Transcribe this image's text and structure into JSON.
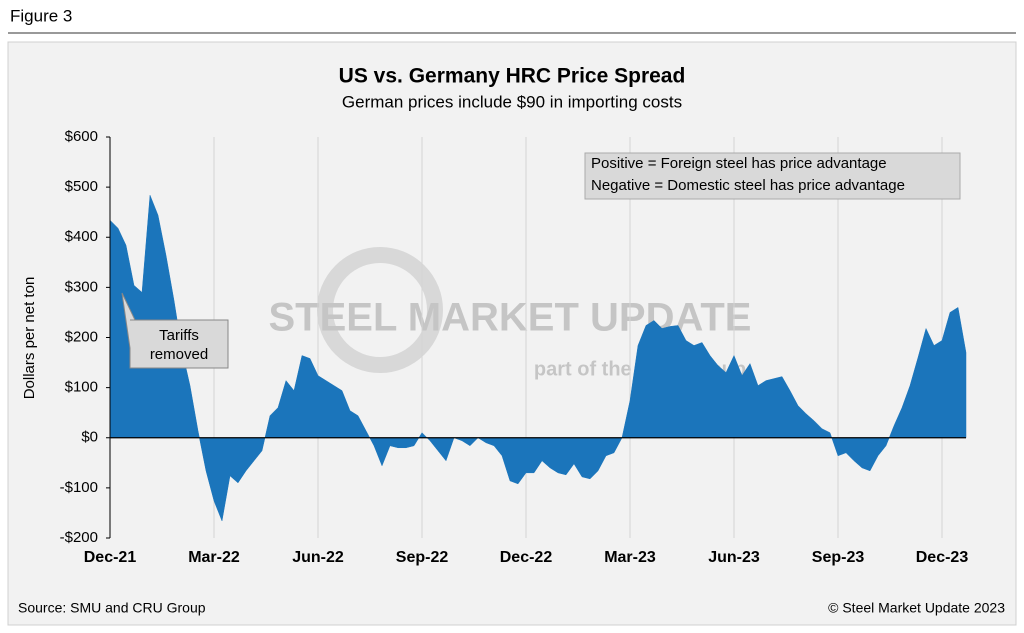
{
  "header": "Figure 3",
  "chart_data": {
    "type": "area",
    "title": "US vs. Germany HRC Price Spread",
    "subtitle": "German prices include $90 in importing costs",
    "y_label": "Dollars per net ton",
    "x": [
      0,
      1,
      2,
      3,
      4,
      5,
      6,
      7,
      8,
      9,
      10,
      11,
      12,
      13,
      14,
      15,
      16,
      17,
      18,
      19,
      20,
      21,
      22,
      23,
      24,
      25,
      26,
      27,
      28,
      29,
      30,
      31,
      32,
      33,
      34,
      35,
      36,
      37,
      38,
      39,
      40,
      41,
      42,
      43,
      44,
      45,
      46,
      47,
      48,
      49,
      50,
      51,
      52,
      53,
      54,
      55,
      56,
      57,
      58,
      59,
      60,
      61,
      62,
      63,
      64,
      65,
      66,
      67,
      68,
      69,
      70,
      71,
      72,
      73,
      74,
      75,
      76,
      77,
      78,
      79,
      80,
      81,
      82,
      83,
      84,
      85,
      86,
      87,
      88,
      89,
      90,
      91,
      92,
      93,
      94,
      95,
      96,
      97,
      98,
      99,
      100,
      101,
      102,
      103,
      104,
      105,
      106,
      107
    ],
    "series": [
      {
        "name": "Price spread",
        "color": "#1b75bb",
        "values": [
          434,
          418,
          384,
          304,
          290,
          484,
          444,
          364,
          274,
          174,
          104,
          14,
          -66,
          -126,
          -166,
          -76,
          -90,
          -66,
          -46,
          -26,
          44,
          60,
          114,
          94,
          164,
          158,
          124,
          114,
          104,
          94,
          54,
          44,
          14,
          -16,
          -56,
          -16,
          -20,
          -20,
          -16,
          10,
          -6,
          -26,
          -46,
          0,
          -6,
          -16,
          0,
          -10,
          -16,
          -36,
          -86,
          -92,
          -70,
          -70,
          -46,
          -60,
          -70,
          -74,
          -52,
          -78,
          -82,
          -66,
          -36,
          -30,
          0,
          74,
          184,
          224,
          234,
          218,
          222,
          224,
          194,
          184,
          190,
          164,
          144,
          130,
          164,
          124,
          148,
          104,
          114,
          118,
          122,
          94,
          64,
          48,
          34,
          18,
          10,
          -36,
          -30,
          -46,
          -60,
          -66,
          -36,
          -16,
          24,
          60,
          104,
          160,
          218,
          184,
          194,
          250,
          260,
          170
        ]
      }
    ],
    "xlim": [
      0,
      107
    ],
    "xticks": [
      {
        "value": 0,
        "label": "Dec-21"
      },
      {
        "value": 13,
        "label": "Mar-22"
      },
      {
        "value": 26,
        "label": "Jun-22"
      },
      {
        "value": 39,
        "label": "Sep-22"
      },
      {
        "value": 52,
        "label": "Dec-22"
      },
      {
        "value": 65,
        "label": "Mar-23"
      },
      {
        "value": 78,
        "label": "Jun-23"
      },
      {
        "value": 91,
        "label": "Sep-23"
      },
      {
        "value": 104,
        "label": "Dec-23"
      }
    ],
    "ylim": [
      -200,
      600
    ],
    "yticks": [
      {
        "value": -200,
        "label": "-$200"
      },
      {
        "value": -100,
        "label": "-$100"
      },
      {
        "value": 0,
        "label": "$0"
      },
      {
        "value": 100,
        "label": "$100"
      },
      {
        "value": 200,
        "label": "$200"
      },
      {
        "value": 300,
        "label": "$300"
      },
      {
        "value": 400,
        "label": "$400"
      },
      {
        "value": 500,
        "label": "$500"
      },
      {
        "value": 600,
        "label": "$600"
      }
    ],
    "grid": "x",
    "legend_note": [
      "Positive = Foreign steel has price advantage",
      "Negative = Domestic steel has price advantage"
    ],
    "annotation": [
      "Tariffs",
      "removed"
    ],
    "watermark": [
      "STEEL MARKET UPDATE",
      "part of the CRU Group"
    ]
  },
  "source": "Source: SMU and CRU Group",
  "copyright": "© Steel Market Update 2023"
}
